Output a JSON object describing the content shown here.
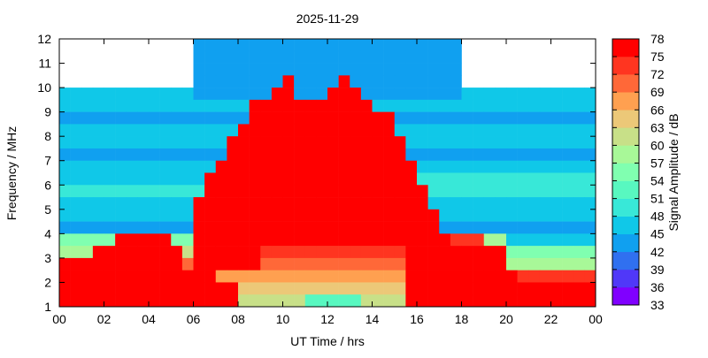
{
  "chart_data": {
    "type": "heatmap",
    "title": "2025-11-29",
    "xlabel": "UT Time / hrs",
    "ylabel": "Frequency / MHz",
    "colorbar_label": "Signal Amplitude / dB",
    "xlim": [
      0,
      24
    ],
    "ylim": [
      1,
      12
    ],
    "x_ticks": [
      "00",
      "02",
      "04",
      "06",
      "08",
      "10",
      "12",
      "14",
      "16",
      "18",
      "20",
      "22",
      "00"
    ],
    "y_ticks": [
      "1",
      "2",
      "3",
      "4",
      "5",
      "6",
      "7",
      "8",
      "9",
      "10",
      "11",
      "12"
    ],
    "color_ticks": [
      "33",
      "36",
      "39",
      "42",
      "45",
      "48",
      "51",
      "54",
      "57",
      "60",
      "63",
      "66",
      "69",
      "72",
      "75",
      "78"
    ],
    "color_range": [
      33,
      78
    ],
    "color_bands": [
      "#8000ff",
      "#5038f8",
      "#3070f0",
      "#10a0f0",
      "#10c8e8",
      "#38e8d8",
      "#58f8c0",
      "#80ffb0",
      "#a8f898",
      "#c8e088",
      "#ecc878",
      "#ffa050",
      "#ff6838",
      "#ff3520",
      "#ff0000"
    ],
    "time_bin_hours": 0.5,
    "freq_bin_mhz": 0.5,
    "rows_freq_top_to_bottom": true,
    "values": [
      [
        null,
        null,
        null,
        null,
        null,
        null,
        null,
        null,
        null,
        null,
        null,
        null,
        42,
        42,
        42,
        42,
        42,
        42,
        42,
        42,
        42,
        42,
        42,
        42,
        42,
        42,
        42,
        42,
        42,
        42,
        42,
        42,
        42,
        42,
        42,
        42,
        null,
        null,
        null,
        null,
        null,
        null,
        null,
        null,
        null,
        null,
        null,
        null
      ],
      [
        null,
        null,
        null,
        null,
        null,
        null,
        null,
        null,
        null,
        null,
        null,
        null,
        42,
        42,
        42,
        42,
        42,
        42,
        42,
        42,
        42,
        42,
        42,
        42,
        42,
        42,
        42,
        42,
        42,
        42,
        42,
        42,
        42,
        42,
        42,
        42,
        null,
        null,
        null,
        null,
        null,
        null,
        null,
        null,
        null,
        null,
        null,
        null
      ],
      [
        null,
        null,
        null,
        null,
        null,
        null,
        null,
        null,
        null,
        null,
        null,
        null,
        42,
        42,
        42,
        42,
        42,
        42,
        42,
        42,
        42,
        42,
        42,
        42,
        42,
        42,
        42,
        42,
        42,
        42,
        42,
        42,
        42,
        42,
        42,
        42,
        null,
        null,
        null,
        null,
        null,
        null,
        null,
        null,
        null,
        null,
        null,
        null
      ],
      [
        null,
        null,
        null,
        null,
        null,
        null,
        null,
        null,
        null,
        null,
        null,
        null,
        42,
        42,
        42,
        42,
        42,
        42,
        42,
        42,
        75,
        42,
        42,
        42,
        42,
        75,
        42,
        42,
        42,
        42,
        42,
        42,
        42,
        42,
        42,
        42,
        null,
        null,
        null,
        null,
        null,
        null,
        null,
        null,
        null,
        null,
        null,
        null
      ],
      [
        45,
        45,
        45,
        45,
        45,
        45,
        45,
        45,
        45,
        45,
        45,
        45,
        42,
        42,
        42,
        42,
        42,
        42,
        42,
        75,
        75,
        42,
        42,
        42,
        75,
        75,
        75,
        42,
        42,
        42,
        42,
        42,
        42,
        42,
        42,
        42,
        45,
        45,
        45,
        45,
        45,
        45,
        45,
        45,
        45,
        45,
        45,
        45
      ],
      [
        45,
        45,
        45,
        45,
        45,
        45,
        45,
        45,
        45,
        45,
        45,
        45,
        45,
        45,
        45,
        45,
        45,
        78,
        78,
        78,
        78,
        78,
        78,
        78,
        78,
        78,
        78,
        78,
        45,
        45,
        45,
        45,
        45,
        45,
        45,
        45,
        45,
        45,
        45,
        45,
        45,
        45,
        45,
        45,
        45,
        45,
        45,
        45
      ],
      [
        42,
        42,
        42,
        42,
        42,
        42,
        42,
        42,
        42,
        42,
        42,
        42,
        42,
        42,
        42,
        42,
        42,
        78,
        78,
        78,
        78,
        78,
        78,
        78,
        78,
        78,
        78,
        78,
        78,
        78,
        42,
        42,
        42,
        42,
        42,
        42,
        42,
        42,
        42,
        42,
        42,
        42,
        42,
        42,
        42,
        42,
        42,
        42
      ],
      [
        45,
        45,
        45,
        45,
        45,
        45,
        45,
        45,
        45,
        45,
        45,
        45,
        45,
        45,
        45,
        45,
        78,
        78,
        78,
        78,
        78,
        78,
        78,
        78,
        78,
        78,
        78,
        78,
        78,
        78,
        45,
        45,
        45,
        45,
        45,
        45,
        45,
        45,
        45,
        45,
        45,
        45,
        45,
        45,
        45,
        45,
        45,
        45
      ],
      [
        45,
        45,
        45,
        45,
        45,
        45,
        45,
        45,
        45,
        45,
        45,
        45,
        45,
        45,
        45,
        78,
        78,
        78,
        78,
        78,
        78,
        78,
        78,
        78,
        78,
        78,
        78,
        78,
        78,
        78,
        78,
        45,
        45,
        45,
        45,
        45,
        45,
        45,
        45,
        45,
        45,
        45,
        45,
        45,
        45,
        45,
        45,
        45
      ],
      [
        42,
        42,
        42,
        42,
        42,
        42,
        42,
        42,
        42,
        42,
        42,
        42,
        42,
        42,
        42,
        78,
        78,
        78,
        78,
        78,
        78,
        78,
        78,
        78,
        78,
        78,
        78,
        78,
        78,
        78,
        78,
        42,
        42,
        42,
        42,
        42,
        42,
        42,
        42,
        42,
        42,
        42,
        42,
        42,
        42,
        42,
        42,
        42
      ],
      [
        45,
        45,
        45,
        45,
        45,
        45,
        45,
        45,
        45,
        45,
        45,
        45,
        45,
        45,
        78,
        78,
        78,
        78,
        78,
        78,
        78,
        78,
        78,
        78,
        78,
        78,
        78,
        78,
        78,
        78,
        78,
        78,
        45,
        45,
        45,
        45,
        45,
        45,
        45,
        45,
        45,
        45,
        45,
        45,
        45,
        45,
        45,
        45
      ],
      [
        45,
        45,
        45,
        45,
        45,
        45,
        45,
        45,
        45,
        45,
        45,
        45,
        45,
        78,
        78,
        78,
        78,
        78,
        78,
        78,
        78,
        78,
        78,
        78,
        78,
        78,
        78,
        78,
        78,
        78,
        78,
        78,
        48,
        48,
        48,
        48,
        48,
        48,
        48,
        48,
        48,
        48,
        48,
        48,
        48,
        48,
        48,
        48
      ],
      [
        48,
        48,
        48,
        48,
        48,
        48,
        48,
        48,
        48,
        48,
        48,
        48,
        48,
        78,
        78,
        78,
        78,
        78,
        78,
        78,
        78,
        78,
        78,
        78,
        78,
        78,
        78,
        78,
        78,
        78,
        78,
        78,
        78,
        48,
        48,
        48,
        48,
        48,
        48,
        48,
        48,
        48,
        48,
        48,
        48,
        48,
        48,
        48
      ],
      [
        45,
        45,
        45,
        45,
        45,
        45,
        45,
        45,
        45,
        45,
        45,
        45,
        78,
        78,
        78,
        78,
        78,
        78,
        78,
        78,
        78,
        78,
        78,
        78,
        78,
        78,
        78,
        78,
        78,
        78,
        78,
        78,
        78,
        45,
        45,
        45,
        45,
        45,
        45,
        45,
        45,
        45,
        45,
        45,
        45,
        45,
        45,
        45
      ],
      [
        45,
        45,
        45,
        45,
        45,
        45,
        45,
        45,
        45,
        45,
        45,
        45,
        78,
        78,
        78,
        78,
        78,
        78,
        78,
        78,
        78,
        78,
        78,
        78,
        78,
        78,
        78,
        78,
        78,
        78,
        78,
        78,
        78,
        78,
        45,
        45,
        45,
        45,
        45,
        45,
        45,
        45,
        45,
        45,
        45,
        45,
        45,
        45
      ],
      [
        42,
        42,
        42,
        42,
        42,
        42,
        42,
        42,
        42,
        42,
        42,
        42,
        78,
        78,
        78,
        78,
        78,
        78,
        78,
        78,
        78,
        78,
        78,
        78,
        78,
        78,
        78,
        78,
        78,
        78,
        78,
        78,
        78,
        78,
        42,
        42,
        42,
        42,
        42,
        42,
        42,
        42,
        42,
        42,
        42,
        42,
        42,
        42
      ],
      [
        54,
        54,
        54,
        54,
        54,
        75,
        75,
        75,
        75,
        75,
        54,
        54,
        78,
        78,
        78,
        78,
        78,
        78,
        78,
        78,
        78,
        78,
        78,
        78,
        78,
        78,
        78,
        78,
        78,
        78,
        78,
        78,
        78,
        78,
        78,
        72,
        72,
        72,
        57,
        57,
        45,
        45,
        45,
        45,
        45,
        45,
        45,
        45
      ],
      [
        57,
        57,
        57,
        78,
        78,
        78,
        78,
        78,
        78,
        78,
        78,
        60,
        78,
        78,
        78,
        78,
        78,
        78,
        72,
        72,
        72,
        72,
        72,
        72,
        72,
        72,
        72,
        72,
        72,
        72,
        72,
        78,
        78,
        78,
        78,
        78,
        78,
        75,
        75,
        75,
        54,
        54,
        54,
        54,
        54,
        54,
        54,
        54
      ],
      [
        78,
        78,
        78,
        78,
        78,
        78,
        78,
        78,
        78,
        78,
        78,
        69,
        78,
        78,
        78,
        78,
        78,
        78,
        69,
        69,
        69,
        69,
        69,
        69,
        69,
        69,
        69,
        69,
        69,
        69,
        69,
        78,
        78,
        78,
        78,
        78,
        78,
        78,
        78,
        78,
        57,
        57,
        57,
        57,
        57,
        57,
        57,
        57
      ],
      [
        78,
        78,
        78,
        78,
        78,
        78,
        78,
        78,
        78,
        78,
        78,
        78,
        78,
        78,
        66,
        66,
        66,
        66,
        66,
        66,
        66,
        66,
        66,
        66,
        66,
        66,
        66,
        66,
        66,
        66,
        66,
        78,
        78,
        78,
        78,
        78,
        78,
        78,
        78,
        78,
        78,
        72,
        72,
        72,
        72,
        72,
        72,
        72
      ],
      [
        78,
        78,
        78,
        78,
        78,
        78,
        78,
        78,
        78,
        78,
        78,
        78,
        78,
        78,
        78,
        78,
        63,
        63,
        63,
        63,
        63,
        63,
        63,
        63,
        63,
        63,
        63,
        63,
        63,
        63,
        63,
        78,
        78,
        78,
        78,
        78,
        78,
        78,
        78,
        78,
        78,
        78,
        78,
        78,
        78,
        78,
        78,
        78
      ],
      [
        75,
        75,
        75,
        75,
        75,
        75,
        75,
        75,
        75,
        75,
        75,
        75,
        75,
        75,
        75,
        75,
        60,
        60,
        60,
        60,
        60,
        60,
        51,
        51,
        51,
        51,
        51,
        60,
        60,
        60,
        60,
        75,
        75,
        75,
        75,
        75,
        75,
        75,
        75,
        75,
        75,
        75,
        75,
        75,
        75,
        75,
        75,
        75
      ]
    ]
  }
}
